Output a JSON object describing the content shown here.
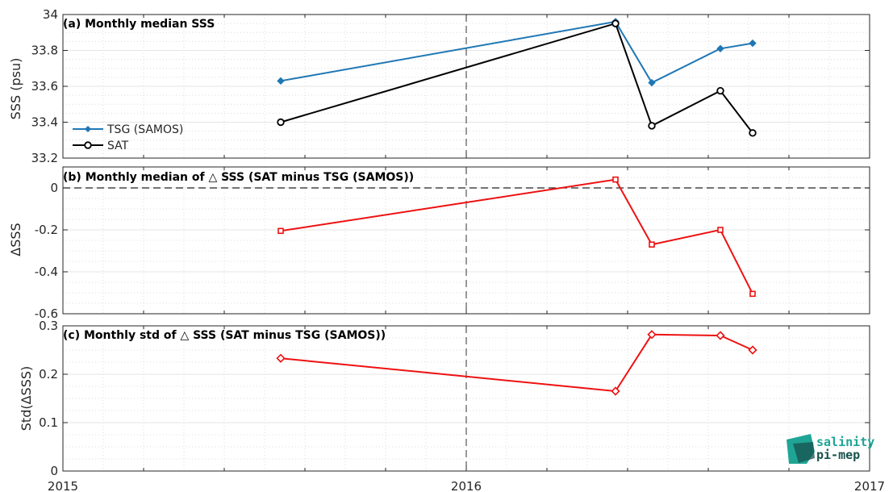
{
  "colors": {
    "tsg": "#1f77b4",
    "sat": "#000000",
    "delta": "#ee1111",
    "logo_teal": "#1fa595",
    "logo_dark": "#17524d"
  },
  "xaxis": {
    "range": [
      2015,
      2017
    ],
    "ticks": [
      "2015",
      "2016",
      "2017"
    ],
    "tick_values": [
      2015,
      2016,
      2017
    ]
  },
  "logo": {
    "line1": "salinity",
    "line2": "pi-mep"
  },
  "chart_data": [
    {
      "type": "line",
      "title": "(a) Monthly median SSS",
      "ylabel": "SSS (psu)",
      "ylim": [
        33.2,
        34
      ],
      "yticks": [
        "33.2",
        "33.4",
        "33.6",
        "33.8",
        "34"
      ],
      "ytick_values": [
        33.2,
        33.4,
        33.6,
        33.8,
        34
      ],
      "grid": true,
      "legend": "left",
      "x": [
        2015.54,
        2016.37,
        2016.46,
        2016.63,
        2016.71
      ],
      "series": [
        {
          "name": "TSG (SAMOS)",
          "values": [
            33.63,
            33.96,
            33.62,
            33.81,
            33.84
          ],
          "marker": "diamond",
          "colorKey": "tsg"
        },
        {
          "name": "SAT",
          "values": [
            33.4,
            33.95,
            33.38,
            33.575,
            33.34
          ],
          "marker": "circle",
          "colorKey": "sat"
        }
      ]
    },
    {
      "type": "line",
      "title": "(b) Monthly median of △ SSS (SAT minus TSG (SAMOS))",
      "ylabel": "ΔSSS",
      "ylim": [
        -0.6,
        0.1
      ],
      "yticks": [
        "-0.6",
        "-0.4",
        "-0.2",
        "0"
      ],
      "ytick_values": [
        -0.6,
        -0.4,
        -0.2,
        0
      ],
      "grid": true,
      "zero_line": true,
      "x": [
        2015.54,
        2016.37,
        2016.46,
        2016.63,
        2016.71
      ],
      "series": [
        {
          "values": [
            -0.205,
            0.04,
            -0.27,
            -0.2,
            -0.505
          ],
          "marker": "square",
          "colorKey": "delta"
        }
      ]
    },
    {
      "type": "line",
      "title": "(c) Monthly std of △ SSS (SAT minus TSG (SAMOS))",
      "ylabel": "Std(ΔSSS)",
      "ylim": [
        0,
        0.3
      ],
      "yticks": [
        "0",
        "0.1",
        "0.2",
        "0.3"
      ],
      "ytick_values": [
        0,
        0.1,
        0.2,
        0.3
      ],
      "grid": true,
      "x": [
        2015.54,
        2016.37,
        2016.46,
        2016.63,
        2016.71
      ],
      "series": [
        {
          "values": [
            0.233,
            0.165,
            0.282,
            0.28,
            0.25
          ],
          "marker": "diamond",
          "colorKey": "delta"
        }
      ]
    }
  ]
}
